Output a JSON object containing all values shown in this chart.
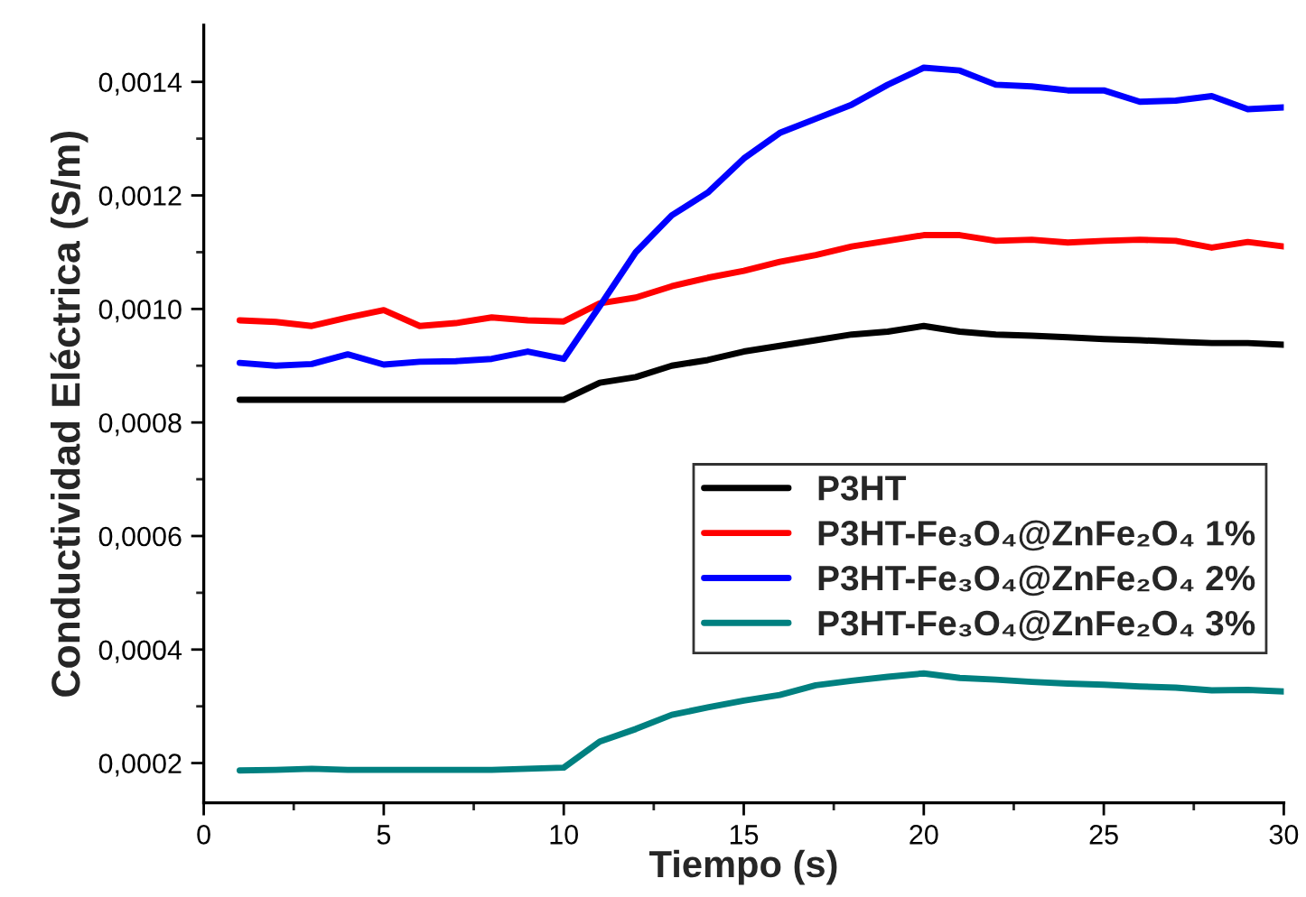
{
  "chart_data": {
    "type": "line",
    "xlabel": "Tiempo (s)",
    "ylabel": "Conductividad Eléctrica (S/m)",
    "x": [
      1,
      2,
      3,
      4,
      5,
      6,
      7,
      8,
      9,
      10,
      11,
      12,
      13,
      14,
      15,
      16,
      17,
      18,
      19,
      20,
      21,
      22,
      23,
      24,
      25,
      26,
      27,
      28,
      29,
      30
    ],
    "series": [
      {
        "name": "P3HT",
        "color": "#000000",
        "values": [
          0.00084,
          0.00084,
          0.00084,
          0.00084,
          0.00084,
          0.00084,
          0.00084,
          0.00084,
          0.00084,
          0.00084,
          0.00087,
          0.00088,
          0.0009,
          0.00091,
          0.000925,
          0.000935,
          0.000945,
          0.000955,
          0.00096,
          0.00097,
          0.00096,
          0.000955,
          0.000953,
          0.00095,
          0.000947,
          0.000945,
          0.000942,
          0.00094,
          0.00094,
          0.000937
        ]
      },
      {
        "name": "P3HT-Fe₃O₄@ZnFe₂O₄ 1%",
        "color": "#ff0000",
        "values": [
          0.00098,
          0.000977,
          0.00097,
          0.000985,
          0.000998,
          0.00097,
          0.000975,
          0.000985,
          0.00098,
          0.000978,
          0.00101,
          0.00102,
          0.00104,
          0.001055,
          0.001067,
          0.001083,
          0.001095,
          0.00111,
          0.00112,
          0.00113,
          0.00113,
          0.00112,
          0.001122,
          0.001117,
          0.00112,
          0.001122,
          0.00112,
          0.001108,
          0.001118,
          0.00111
        ]
      },
      {
        "name": "P3HT-Fe₃O₄@ZnFe₂O₄ 2%",
        "color": "#0000ff",
        "values": [
          0.000905,
          0.0009,
          0.000903,
          0.00092,
          0.000902,
          0.000907,
          0.000908,
          0.000912,
          0.000925,
          0.000912,
          0.001005,
          0.0011,
          0.001165,
          0.001205,
          0.001265,
          0.00131,
          0.001335,
          0.00136,
          0.001395,
          0.001425,
          0.00142,
          0.001395,
          0.001392,
          0.001385,
          0.001385,
          0.001365,
          0.001367,
          0.001375,
          0.001352,
          0.001355
        ]
      },
      {
        "name": "P3HT-Fe₃O₄@ZnFe₂O₄ 3%",
        "color": "#008080",
        "values": [
          0.000187,
          0.000188,
          0.00019,
          0.000188,
          0.000188,
          0.000188,
          0.000188,
          0.000188,
          0.00019,
          0.000192,
          0.000238,
          0.00026,
          0.000285,
          0.000298,
          0.00031,
          0.00032,
          0.000337,
          0.000345,
          0.000352,
          0.000358,
          0.00035,
          0.000347,
          0.000343,
          0.00034,
          0.000338,
          0.000335,
          0.000333,
          0.000328,
          0.000329,
          0.000326
        ]
      }
    ],
    "xlim": [
      0,
      30
    ],
    "ylim": [
      0.00013,
      0.0015
    ],
    "xticks": [
      0,
      {
        "value": 2.5,
        "label": null
      },
      5,
      {
        "value": 7.5,
        "label": null
      },
      10,
      {
        "value": 12.5,
        "label": null
      },
      15,
      {
        "value": 17.5,
        "label": null
      },
      20,
      {
        "value": 22.5,
        "label": null
      },
      25,
      {
        "value": 27.5,
        "label": null
      },
      30
    ],
    "yticks": [
      {
        "value": 0.0002,
        "label": "0,0002"
      },
      {
        "value": 0.0003,
        "label": null
      },
      {
        "value": 0.0004,
        "label": "0,0004"
      },
      {
        "value": 0.0005,
        "label": null
      },
      {
        "value": 0.0006,
        "label": "0,0006"
      },
      {
        "value": 0.0007,
        "label": null
      },
      {
        "value": 0.0008,
        "label": "0,0008"
      },
      {
        "value": 0.0009,
        "label": null
      },
      {
        "value": 0.001,
        "label": "0,0010"
      },
      {
        "value": 0.0011,
        "label": null
      },
      {
        "value": 0.0012,
        "label": "0,0012"
      },
      {
        "value": 0.0013,
        "label": null
      },
      {
        "value": 0.0014,
        "label": "0,0014"
      }
    ],
    "grid": false,
    "legend": "lower right",
    "marker": "none",
    "line_style": "solid"
  }
}
